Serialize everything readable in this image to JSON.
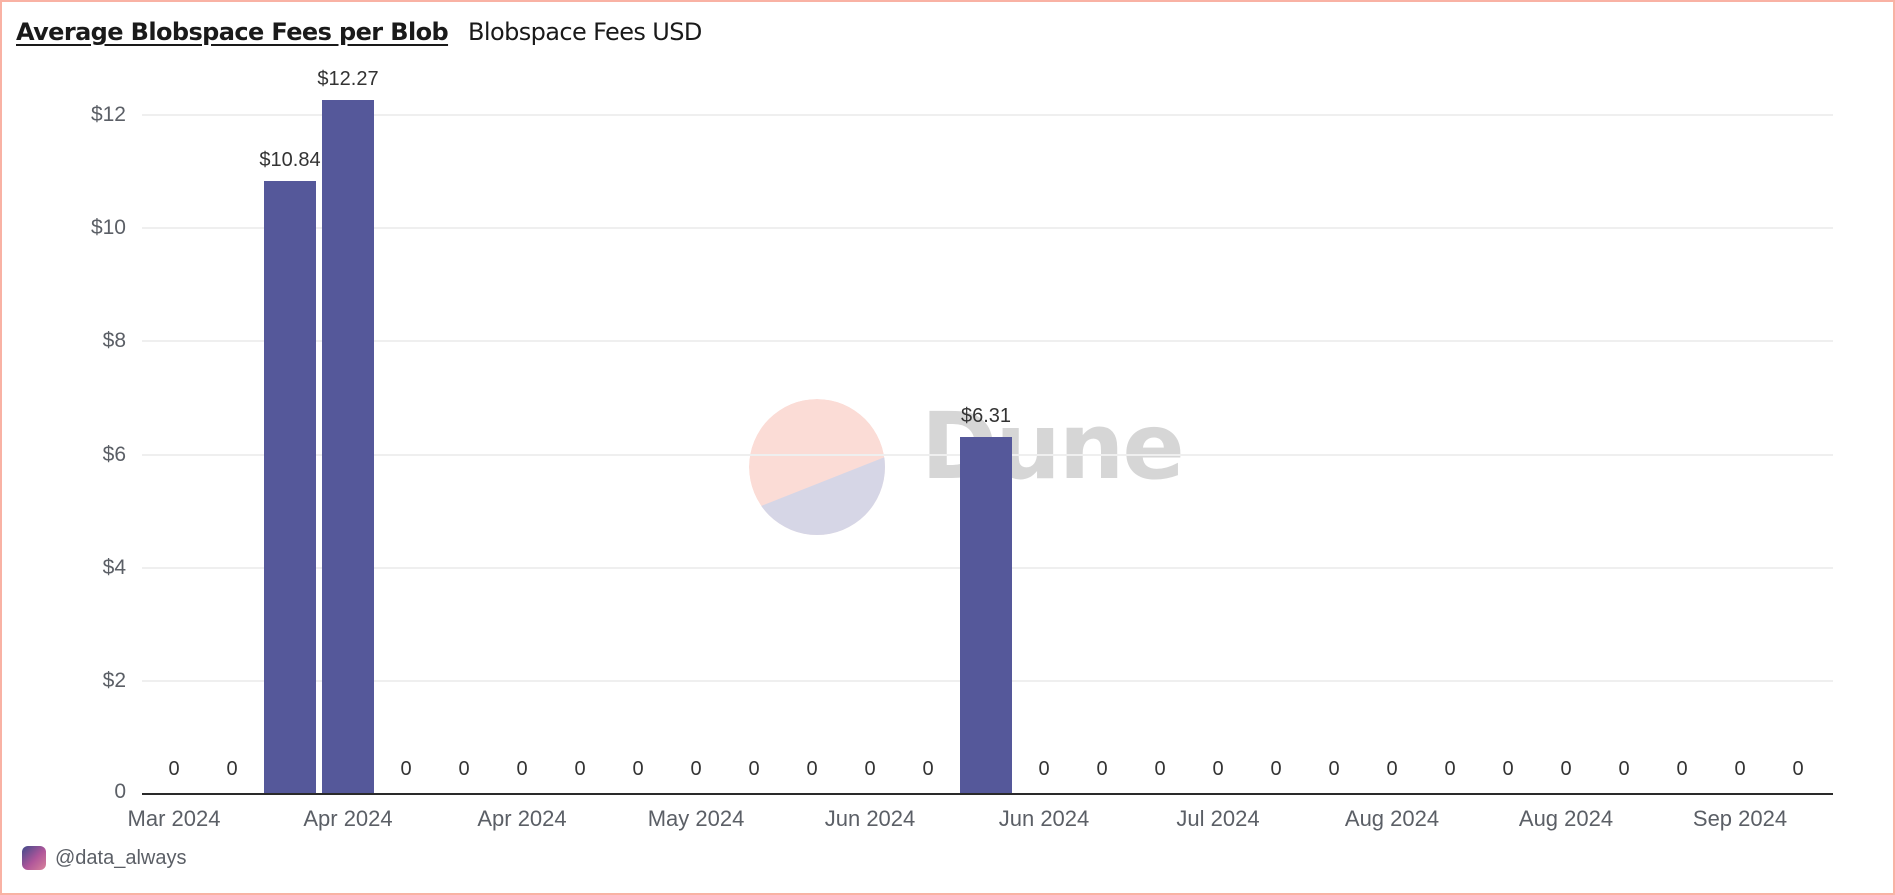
{
  "header": {
    "title": "Average Blobspace Fees per Blob",
    "subtitle": "Blobspace Fees USD"
  },
  "footer": {
    "handle": "@data_always",
    "avatar_icon": "user-avatar-icon"
  },
  "watermark": {
    "text": "Dune",
    "logo_colors": [
      "#fbdcd6",
      "#d6d6e6"
    ]
  },
  "colors": {
    "bar": "#55589a",
    "border": "#f9b2a4",
    "grid": "#efefef",
    "axis": "#2a2a2a"
  },
  "chart_data": {
    "type": "bar",
    "title": "Average Blobspace Fees per Blob",
    "subtitle": "Blobspace Fees USD",
    "xlabel": "",
    "ylabel": "",
    "ylim": [
      0,
      12
    ],
    "grid": true,
    "legend": "none",
    "y_ticks": [
      {
        "value": 0,
        "label": "0"
      },
      {
        "value": 2,
        "label": "$2"
      },
      {
        "value": 4,
        "label": "$4"
      },
      {
        "value": 6,
        "label": "$6"
      },
      {
        "value": 8,
        "label": "$8"
      },
      {
        "value": 10,
        "label": "$10"
      },
      {
        "value": 12,
        "label": "$12"
      }
    ],
    "x_tick_labels": [
      {
        "index": 0,
        "label": "Mar 2024"
      },
      {
        "index": 3,
        "label": "Apr 2024"
      },
      {
        "index": 6,
        "label": "Apr 2024"
      },
      {
        "index": 9,
        "label": "May 2024"
      },
      {
        "index": 12,
        "label": "Jun 2024"
      },
      {
        "index": 15,
        "label": "Jun 2024"
      },
      {
        "index": 18,
        "label": "Jul 2024"
      },
      {
        "index": 21,
        "label": "Aug 2024"
      },
      {
        "index": 24,
        "label": "Aug 2024"
      },
      {
        "index": 27,
        "label": "Sep 2024"
      }
    ],
    "series": [
      {
        "name": "Blobspace Fees USD",
        "values": [
          0,
          0,
          10.84,
          12.27,
          0,
          0,
          0,
          0,
          0,
          0,
          0,
          0,
          0,
          0,
          6.31,
          0,
          0,
          0,
          0,
          0,
          0,
          0,
          0,
          0,
          0,
          0,
          0,
          0,
          0
        ],
        "value_labels": [
          "0",
          "0",
          "$10.84",
          "$12.27",
          "0",
          "0",
          "0",
          "0",
          "0",
          "0",
          "0",
          "0",
          "0",
          "0",
          "$6.31",
          "0",
          "0",
          "0",
          "0",
          "0",
          "0",
          "0",
          "0",
          "0",
          "0",
          "0",
          "0",
          "0",
          "0"
        ]
      }
    ]
  }
}
